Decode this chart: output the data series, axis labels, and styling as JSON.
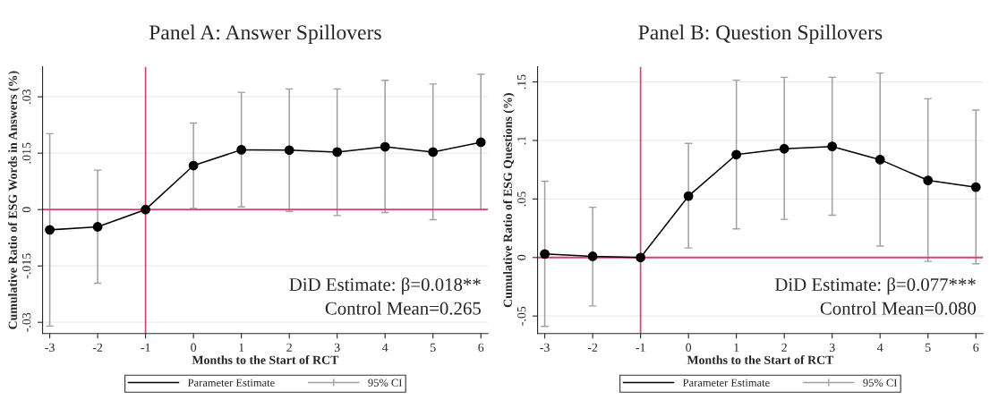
{
  "chart_data": [
    {
      "type": "line",
      "title": "Panel A: Answer Spillovers",
      "xlabel": "Months to the Start of RCT",
      "ylabel": "Cumulative Ratio of ESG Words in Answers (%)",
      "x": [
        -3,
        -2,
        -1,
        0,
        1,
        2,
        3,
        4,
        5,
        6
      ],
      "series": [
        {
          "name": "Parameter Estimate",
          "color": "#000000",
          "values": [
            -0.0054,
            -0.0046,
            0,
            0.0117,
            0.0159,
            0.0158,
            0.0153,
            0.0167,
            0.0153,
            0.0179
          ],
          "errors": [
            [
              -0.031,
              0.0202
            ],
            [
              -0.0196,
              0.0105
            ],
            null,
            [
              0.0003,
              0.023
            ],
            [
              0.0007,
              0.0312
            ],
            [
              -0.0005,
              0.0321
            ],
            [
              -0.0016,
              0.0321
            ],
            [
              -0.0008,
              0.0344
            ],
            [
              -0.0027,
              0.0334
            ],
            [
              0.0,
              0.036
            ]
          ]
        }
      ],
      "xlim": [
        -3.15,
        6.15
      ],
      "ylim": [
        -0.033,
        0.038
      ],
      "xticks": [
        -3,
        -2,
        -1,
        0,
        1,
        2,
        3,
        4,
        5,
        6
      ],
      "yticks": [
        {
          "value": -0.03,
          "label": "-.03"
        },
        {
          "value": -0.015,
          "label": "-.015"
        },
        0,
        {
          "value": 0.015,
          "label": ".015"
        },
        {
          "value": 0.03,
          "label": ".03"
        }
      ],
      "ref_lines": [
        {
          "axis": "y",
          "value": 0,
          "color": "#d6426a"
        },
        {
          "axis": "x",
          "value": -1,
          "color": "#d6426a"
        }
      ],
      "annotations": [
        "DiD Estimate: β=0.018**",
        "Control Mean=0.265",
        "95% CI"
      ],
      "marker": "circle",
      "grid": "y",
      "legend": "bottom"
    },
    {
      "type": "line",
      "title": "Panel B: Question Spillovers",
      "xlabel": "Months to the Start of RCT",
      "ylabel": "Cumulative Ratio of ESG Questions (%)",
      "x": [
        -3,
        -2,
        -1,
        0,
        1,
        2,
        3,
        4,
        5,
        6
      ],
      "series": [
        {
          "name": "Parameter Estimate",
          "color": "#000000",
          "values": [
            0.003,
            0.001,
            0,
            0.0525,
            0.0879,
            0.0929,
            0.0949,
            0.0836,
            0.0659,
            0.0601
          ],
          "errors": [
            [
              -0.0588,
              0.0652
            ],
            [
              -0.0414,
              0.0429
            ],
            null,
            [
              0.0081,
              0.0975
            ],
            [
              0.0245,
              0.1515
            ],
            [
              0.0326,
              0.154
            ],
            [
              0.0361,
              0.154
            ],
            [
              0.0098,
              0.1576
            ],
            [
              -0.0033,
              0.1356
            ],
            [
              -0.0053,
              0.126
            ]
          ]
        }
      ],
      "xlim": [
        -3.15,
        6.15
      ],
      "ylim": [
        -0.065,
        0.163
      ],
      "xticks": [
        -3,
        -2,
        -1,
        0,
        1,
        2,
        3,
        4,
        5,
        6
      ],
      "yticks": [
        {
          "value": -0.05,
          "label": "-.05"
        },
        0,
        {
          "value": 0.05,
          "label": ".05"
        },
        {
          "value": 0.1,
          "label": ".1"
        },
        {
          "value": 0.15,
          "label": ".15"
        }
      ],
      "ref_lines": [
        {
          "axis": "y",
          "value": 0,
          "color": "#d6426a"
        },
        {
          "axis": "x",
          "value": -1,
          "color": "#d6426a"
        }
      ],
      "annotations": [
        "DiD Estimate: β=0.077***",
        "Control Mean=0.080",
        "95% CI"
      ],
      "marker": "circle",
      "grid": "y",
      "legend": "bottom"
    }
  ]
}
